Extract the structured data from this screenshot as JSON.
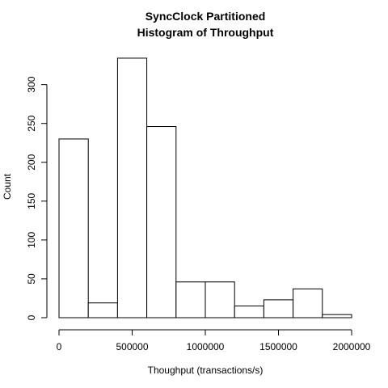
{
  "chart_data": {
    "type": "bar",
    "title": "SyncClock Partitioned",
    "subtitle": "Histogram of Throughput",
    "xlabel": "Thoughput (transactions/s)",
    "ylabel": "Count",
    "xlim": [
      0,
      2000000
    ],
    "ylim": [
      0,
      335
    ],
    "x_ticks": [
      0,
      500000,
      1000000,
      1500000,
      2000000
    ],
    "x_tick_labels": [
      "0",
      "500000",
      "1000000",
      "1500000",
      "2000000"
    ],
    "y_ticks": [
      0,
      50,
      100,
      150,
      200,
      250,
      300
    ],
    "y_tick_labels": [
      "0",
      "50",
      "100",
      "150",
      "200",
      "250",
      "300"
    ],
    "bin_edges": [
      0,
      200000,
      400000,
      600000,
      800000,
      1000000,
      1200000,
      1400000,
      1600000,
      1800000,
      2000000
    ],
    "values": [
      230,
      19,
      334,
      246,
      46,
      46,
      15,
      23,
      37,
      4
    ],
    "grid": false,
    "legend": "none",
    "colors": {
      "bar_fill": "#ffffff",
      "bar_stroke": "#000000",
      "axis": "#000000"
    }
  }
}
